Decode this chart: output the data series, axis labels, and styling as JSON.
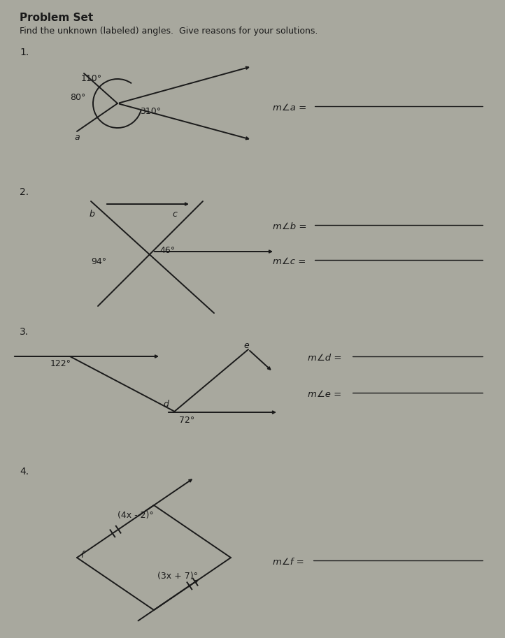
{
  "bg_color": "#a8a89e",
  "line_color": "#1a1a1a",
  "text_color": "#1a1a1a",
  "title": "Problem Set",
  "subtitle": "Find the unknown (labeled) angles.  Give reasons for your solutions.",
  "p1_label": "1.",
  "p1_angle1": "110°",
  "p1_angle2": "80°",
  "p1_angle3": "310°",
  "p1_anglename": "a",
  "p1_answer": "m∠a =",
  "p2_label": "2.",
  "p2_angle1": "94°",
  "p2_angle2": "46°",
  "p2_lb": "b",
  "p2_lc": "c",
  "p2_ans1": "m∠b =",
  "p2_ans2": "m∠c =",
  "p3_label": "3.",
  "p3_angle1": "122°",
  "p3_angle2": "72°",
  "p3_ld": "d",
  "p3_le": "e",
  "p3_ans1": "m∠d =",
  "p3_ans2": "m∠e =",
  "p4_label": "4.",
  "p4_angle1": "(4x - 2)°",
  "p4_angle2": "(3x + 7)°",
  "p4_lf": "f",
  "p4_ans1": "m∠f ="
}
